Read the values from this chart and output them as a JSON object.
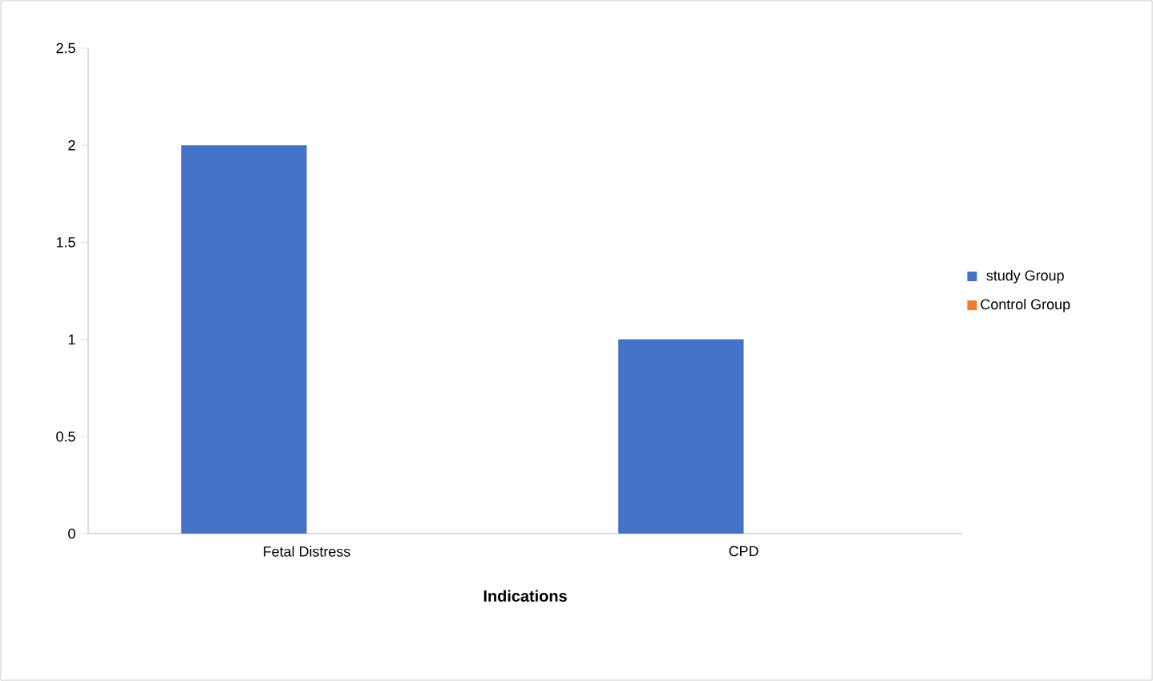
{
  "chart_data": {
    "type": "bar",
    "xlabel": "Indications",
    "categories": [
      "Fetal Distress",
      "CPD"
    ],
    "series": [
      {
        "name": "study Group",
        "color": "#4472c4",
        "values": [
          2,
          1
        ]
      },
      {
        "name": "Control Group",
        "color": "#ed7d31",
        "values": [
          0,
          0
        ]
      }
    ],
    "ylim": [
      0,
      2.5
    ],
    "yticks": [
      0,
      0.5,
      1,
      1.5,
      2,
      2.5
    ],
    "grid": false,
    "legend": "right"
  }
}
